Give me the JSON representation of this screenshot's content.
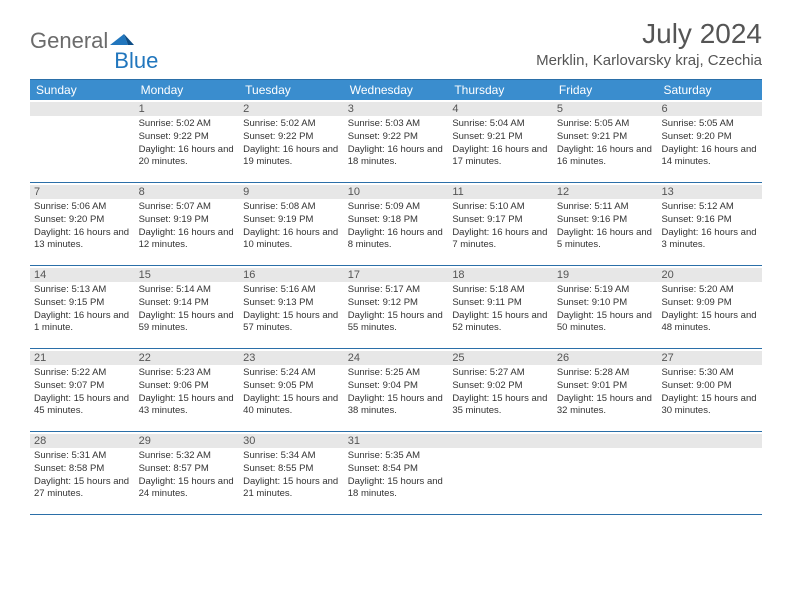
{
  "logo": {
    "text1": "General",
    "text2": "Blue"
  },
  "title": "July 2024",
  "location": "Merklin, Karlovarsky kraj, Czechia",
  "colors": {
    "header_bg": "#3a8dce",
    "header_text": "#ffffff",
    "border": "#2b6fa8",
    "daynum_bg": "#e7e7e7",
    "body_text": "#333333",
    "title_text": "#555555",
    "logo_gray": "#6b6b6b",
    "logo_blue": "#2176bd"
  },
  "day_names": [
    "Sunday",
    "Monday",
    "Tuesday",
    "Wednesday",
    "Thursday",
    "Friday",
    "Saturday"
  ],
  "weeks": [
    [
      {
        "num": "",
        "lines": []
      },
      {
        "num": "1",
        "lines": [
          "Sunrise: 5:02 AM",
          "Sunset: 9:22 PM",
          "Daylight: 16 hours and 20 minutes."
        ]
      },
      {
        "num": "2",
        "lines": [
          "Sunrise: 5:02 AM",
          "Sunset: 9:22 PM",
          "Daylight: 16 hours and 19 minutes."
        ]
      },
      {
        "num": "3",
        "lines": [
          "Sunrise: 5:03 AM",
          "Sunset: 9:22 PM",
          "Daylight: 16 hours and 18 minutes."
        ]
      },
      {
        "num": "4",
        "lines": [
          "Sunrise: 5:04 AM",
          "Sunset: 9:21 PM",
          "Daylight: 16 hours and 17 minutes."
        ]
      },
      {
        "num": "5",
        "lines": [
          "Sunrise: 5:05 AM",
          "Sunset: 9:21 PM",
          "Daylight: 16 hours and 16 minutes."
        ]
      },
      {
        "num": "6",
        "lines": [
          "Sunrise: 5:05 AM",
          "Sunset: 9:20 PM",
          "Daylight: 16 hours and 14 minutes."
        ]
      }
    ],
    [
      {
        "num": "7",
        "lines": [
          "Sunrise: 5:06 AM",
          "Sunset: 9:20 PM",
          "Daylight: 16 hours and 13 minutes."
        ]
      },
      {
        "num": "8",
        "lines": [
          "Sunrise: 5:07 AM",
          "Sunset: 9:19 PM",
          "Daylight: 16 hours and 12 minutes."
        ]
      },
      {
        "num": "9",
        "lines": [
          "Sunrise: 5:08 AM",
          "Sunset: 9:19 PM",
          "Daylight: 16 hours and 10 minutes."
        ]
      },
      {
        "num": "10",
        "lines": [
          "Sunrise: 5:09 AM",
          "Sunset: 9:18 PM",
          "Daylight: 16 hours and 8 minutes."
        ]
      },
      {
        "num": "11",
        "lines": [
          "Sunrise: 5:10 AM",
          "Sunset: 9:17 PM",
          "Daylight: 16 hours and 7 minutes."
        ]
      },
      {
        "num": "12",
        "lines": [
          "Sunrise: 5:11 AM",
          "Sunset: 9:16 PM",
          "Daylight: 16 hours and 5 minutes."
        ]
      },
      {
        "num": "13",
        "lines": [
          "Sunrise: 5:12 AM",
          "Sunset: 9:16 PM",
          "Daylight: 16 hours and 3 minutes."
        ]
      }
    ],
    [
      {
        "num": "14",
        "lines": [
          "Sunrise: 5:13 AM",
          "Sunset: 9:15 PM",
          "Daylight: 16 hours and 1 minute."
        ]
      },
      {
        "num": "15",
        "lines": [
          "Sunrise: 5:14 AM",
          "Sunset: 9:14 PM",
          "Daylight: 15 hours and 59 minutes."
        ]
      },
      {
        "num": "16",
        "lines": [
          "Sunrise: 5:16 AM",
          "Sunset: 9:13 PM",
          "Daylight: 15 hours and 57 minutes."
        ]
      },
      {
        "num": "17",
        "lines": [
          "Sunrise: 5:17 AM",
          "Sunset: 9:12 PM",
          "Daylight: 15 hours and 55 minutes."
        ]
      },
      {
        "num": "18",
        "lines": [
          "Sunrise: 5:18 AM",
          "Sunset: 9:11 PM",
          "Daylight: 15 hours and 52 minutes."
        ]
      },
      {
        "num": "19",
        "lines": [
          "Sunrise: 5:19 AM",
          "Sunset: 9:10 PM",
          "Daylight: 15 hours and 50 minutes."
        ]
      },
      {
        "num": "20",
        "lines": [
          "Sunrise: 5:20 AM",
          "Sunset: 9:09 PM",
          "Daylight: 15 hours and 48 minutes."
        ]
      }
    ],
    [
      {
        "num": "21",
        "lines": [
          "Sunrise: 5:22 AM",
          "Sunset: 9:07 PM",
          "Daylight: 15 hours and 45 minutes."
        ]
      },
      {
        "num": "22",
        "lines": [
          "Sunrise: 5:23 AM",
          "Sunset: 9:06 PM",
          "Daylight: 15 hours and 43 minutes."
        ]
      },
      {
        "num": "23",
        "lines": [
          "Sunrise: 5:24 AM",
          "Sunset: 9:05 PM",
          "Daylight: 15 hours and 40 minutes."
        ]
      },
      {
        "num": "24",
        "lines": [
          "Sunrise: 5:25 AM",
          "Sunset: 9:04 PM",
          "Daylight: 15 hours and 38 minutes."
        ]
      },
      {
        "num": "25",
        "lines": [
          "Sunrise: 5:27 AM",
          "Sunset: 9:02 PM",
          "Daylight: 15 hours and 35 minutes."
        ]
      },
      {
        "num": "26",
        "lines": [
          "Sunrise: 5:28 AM",
          "Sunset: 9:01 PM",
          "Daylight: 15 hours and 32 minutes."
        ]
      },
      {
        "num": "27",
        "lines": [
          "Sunrise: 5:30 AM",
          "Sunset: 9:00 PM",
          "Daylight: 15 hours and 30 minutes."
        ]
      }
    ],
    [
      {
        "num": "28",
        "lines": [
          "Sunrise: 5:31 AM",
          "Sunset: 8:58 PM",
          "Daylight: 15 hours and 27 minutes."
        ]
      },
      {
        "num": "29",
        "lines": [
          "Sunrise: 5:32 AM",
          "Sunset: 8:57 PM",
          "Daylight: 15 hours and 24 minutes."
        ]
      },
      {
        "num": "30",
        "lines": [
          "Sunrise: 5:34 AM",
          "Sunset: 8:55 PM",
          "Daylight: 15 hours and 21 minutes."
        ]
      },
      {
        "num": "31",
        "lines": [
          "Sunrise: 5:35 AM",
          "Sunset: 8:54 PM",
          "Daylight: 15 hours and 18 minutes."
        ]
      },
      {
        "num": "",
        "lines": []
      },
      {
        "num": "",
        "lines": []
      },
      {
        "num": "",
        "lines": []
      }
    ]
  ]
}
